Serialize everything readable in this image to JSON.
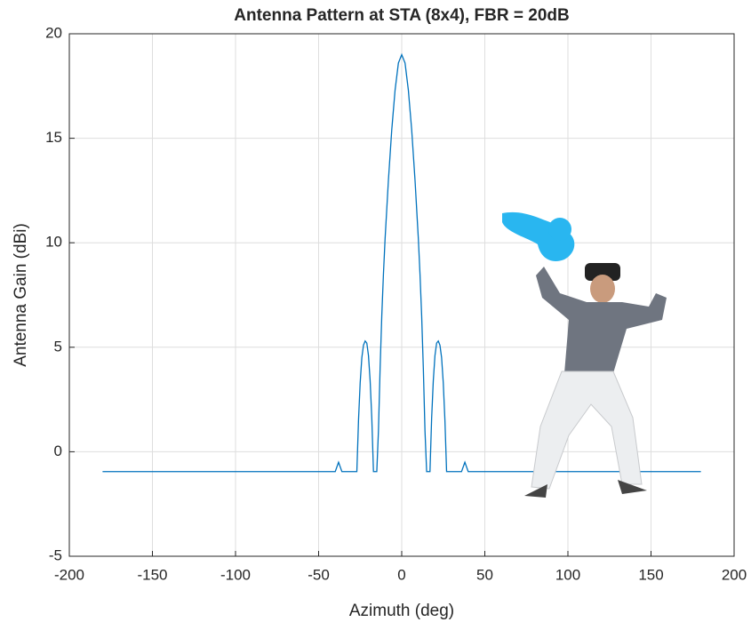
{
  "chart_data": {
    "type": "line",
    "title": "Antenna Pattern at STA (8x4), FBR = 20dB",
    "x_label": "Azimuth (deg)",
    "y_label": "Antenna Gain (dBi)",
    "x": [
      -180,
      -42,
      -40,
      -38,
      -36,
      -34,
      -27,
      -26,
      -25,
      -24,
      -23,
      -22,
      -21,
      -20,
      -19,
      -18,
      -17,
      -16,
      -15,
      -14,
      -13,
      -12,
      -11,
      -10,
      -8,
      -6,
      -4,
      -2,
      0,
      2,
      4,
      6,
      8,
      10,
      11,
      12,
      13,
      14,
      15,
      16,
      17,
      18,
      19,
      20,
      21,
      22,
      23,
      24,
      25,
      26,
      27,
      34,
      36,
      38,
      40,
      42,
      180
    ],
    "series": [
      {
        "color": "#0072bd",
        "values": [
          -0.95,
          -0.95,
          -0.95,
          -0.5,
          -0.95,
          -0.95,
          -0.95,
          1.5,
          3.3,
          4.5,
          5.1,
          5.3,
          5.2,
          4.6,
          3.4,
          1.6,
          -0.95,
          -0.95,
          -0.95,
          1.0,
          4.0,
          6.5,
          8.5,
          10.2,
          13.0,
          15.4,
          17.3,
          18.6,
          19,
          18.6,
          17.3,
          15.4,
          13.0,
          10.2,
          8.5,
          6.5,
          4.0,
          1.0,
          -0.95,
          -0.95,
          -0.95,
          1.6,
          3.4,
          4.6,
          5.2,
          5.3,
          5.1,
          4.5,
          3.3,
          1.5,
          -0.95,
          -0.95,
          -0.95,
          -0.5,
          -0.95,
          -0.95,
          -0.95
        ]
      }
    ],
    "xlim": [
      -200,
      200
    ],
    "ylim": [
      -5,
      20
    ],
    "xticks": [
      -200,
      -150,
      -100,
      -50,
      0,
      50,
      100,
      150,
      200
    ],
    "yticks": [
      -5,
      0,
      5,
      10,
      15,
      20
    ],
    "grid": true
  }
}
